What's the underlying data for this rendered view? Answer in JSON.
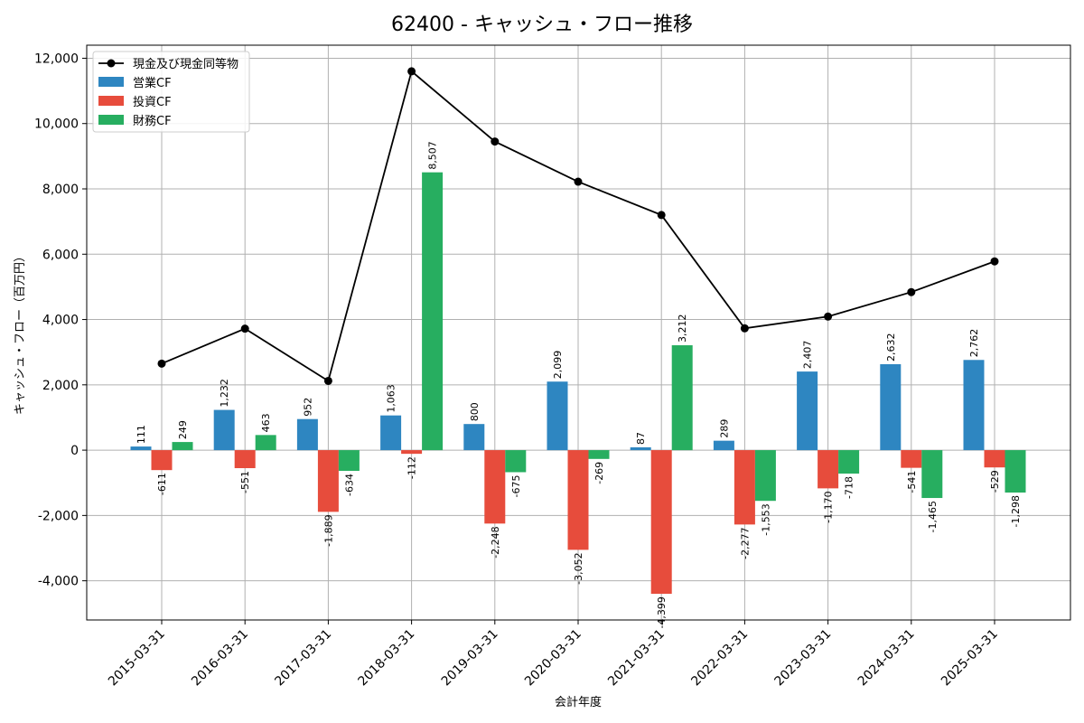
{
  "chart_data": {
    "type": "bar",
    "title": "62400 - キャッシュ・フロー推移",
    "xlabel": "会計年度",
    "ylabel": "キャッシュ・フロー（百万円）",
    "ylim": [
      -5200,
      12400
    ],
    "yticks": [
      -4000,
      -2000,
      0,
      2000,
      4000,
      6000,
      8000,
      10000,
      12000
    ],
    "ytick_labels": [
      "-4,000",
      "-2,000",
      "0",
      "2,000",
      "4,000",
      "6,000",
      "8,000",
      "10,000",
      "12,000"
    ],
    "grid": true,
    "legend_position": "top-left",
    "categories": [
      "2015-03-31",
      "2016-03-31",
      "2017-03-31",
      "2018-03-31",
      "2019-03-31",
      "2020-03-31",
      "2021-03-31",
      "2022-03-31",
      "2023-03-31",
      "2024-03-31",
      "2025-03-31"
    ],
    "series": [
      {
        "name": "営業CF",
        "kind": "bar",
        "color": "#2e86c1",
        "values": [
          111,
          1232,
          952,
          1063,
          800,
          2099,
          87,
          289,
          2407,
          2632,
          2762
        ],
        "labels": [
          "111",
          "1,232",
          "952",
          "1,063",
          "800",
          "2,099",
          "87",
          "289",
          "2,407",
          "2,632",
          "2,762"
        ]
      },
      {
        "name": "投資CF",
        "kind": "bar",
        "color": "#e74c3c",
        "values": [
          -611,
          -551,
          -1889,
          -112,
          -2248,
          -3052,
          -4399,
          -2277,
          -1170,
          -541,
          -529
        ],
        "labels": [
          "-611",
          "-551",
          "-1,889",
          "-112",
          "-2,248",
          "-3,052",
          "-4,399",
          "-2,277",
          "-1,170",
          "-541",
          "-529"
        ]
      },
      {
        "name": "財務CF",
        "kind": "bar",
        "color": "#27ae60",
        "values": [
          249,
          463,
          -634,
          8507,
          -675,
          -269,
          3212,
          -1553,
          -718,
          -1465,
          -1298
        ],
        "labels": [
          "249",
          "463",
          "-634",
          "8,507",
          "-675",
          "-269",
          "3,212",
          "-1,553",
          "-718",
          "-1,465",
          "-1,298"
        ]
      },
      {
        "name": "現金及び現金同等物",
        "kind": "line",
        "color": "#000000",
        "values": [
          2650,
          3720,
          2120,
          11600,
          9450,
          8220,
          7200,
          3730,
          4090,
          4840,
          5780
        ]
      }
    ]
  }
}
